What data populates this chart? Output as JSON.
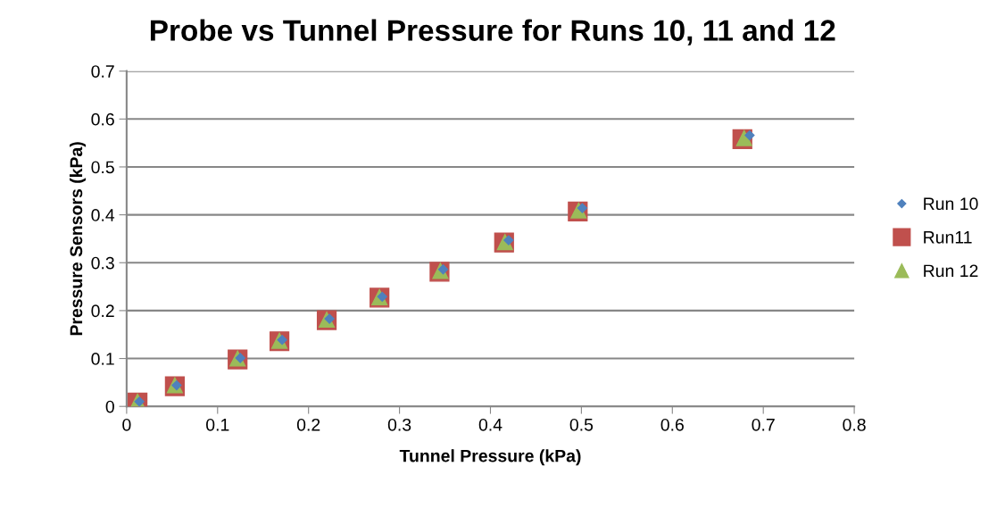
{
  "chart_data": {
    "type": "scatter",
    "title": "Probe vs Tunnel Pressure for Runs 10, 11 and 12",
    "xlabel": "Tunnel Pressure (kPa)",
    "ylabel": "Pressure Sensors (kPa)",
    "xlim": [
      0,
      0.8
    ],
    "xticks": [
      {
        "value": 0,
        "label": "0"
      },
      0.1,
      0.2,
      0.3,
      0.4,
      0.5,
      0.6,
      0.7,
      0.8
    ],
    "ylim": [
      0,
      0.7
    ],
    "yticks": [
      {
        "value": 0,
        "label": "0"
      },
      0.1,
      0.2,
      0.3,
      0.4,
      0.5,
      0.6,
      0.7
    ],
    "grid": "y",
    "legend": "right",
    "series": [
      {
        "name": "Run 10",
        "color": "#4f81bd",
        "marker": "diamond",
        "x": [
          0.014,
          0.055,
          0.125,
          0.171,
          0.223,
          0.281,
          0.348,
          0.42,
          0.501,
          0.685
        ],
        "values": [
          0.01,
          0.044,
          0.101,
          0.139,
          0.183,
          0.229,
          0.286,
          0.347,
          0.414,
          0.566
        ]
      },
      {
        "name": "Run11",
        "color": "#c0504d",
        "marker": "square",
        "x": [
          0.012,
          0.053,
          0.122,
          0.168,
          0.22,
          0.278,
          0.344,
          0.415,
          0.496,
          0.677
        ],
        "values": [
          0.008,
          0.042,
          0.098,
          0.136,
          0.18,
          0.227,
          0.281,
          0.342,
          0.407,
          0.558
        ]
      },
      {
        "name": "Run 12",
        "color": "#9bbb59",
        "marker": "triangle",
        "x": [
          0.012,
          0.053,
          0.122,
          0.168,
          0.22,
          0.278,
          0.345,
          0.416,
          0.497,
          0.679
        ],
        "values": [
          0.01,
          0.044,
          0.1,
          0.137,
          0.181,
          0.228,
          0.283,
          0.343,
          0.409,
          0.56
        ]
      }
    ]
  }
}
